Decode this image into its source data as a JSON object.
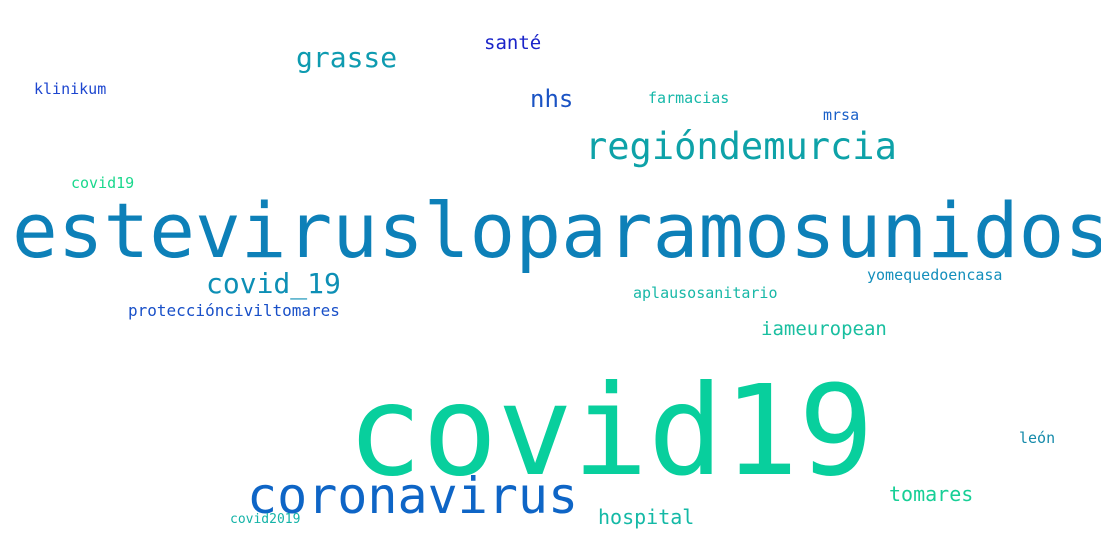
{
  "words": [
    {
      "text": "grasse",
      "color": "#0e9bb0"
    },
    {
      "text": "santé",
      "color": "#1a24c9"
    },
    {
      "text": "klinikum",
      "color": "#1d46cf"
    },
    {
      "text": "nhs",
      "color": "#1a53c4"
    },
    {
      "text": "farmacias",
      "color": "#16b8a9"
    },
    {
      "text": "mrsa",
      "color": "#1a60c8"
    },
    {
      "text": "regióndemurcia",
      "color": "#0ea2a8"
    },
    {
      "text": "covid19",
      "color": "#1ad88d"
    },
    {
      "text": "estevirusloparamosunidos",
      "color": "#0d80b8"
    },
    {
      "text": "covid_19",
      "color": "#0d8fb5"
    },
    {
      "text": "yomequedoencasa",
      "color": "#148fbc"
    },
    {
      "text": "aplausosanitario",
      "color": "#18b8a7"
    },
    {
      "text": "protecciónciviltomares",
      "color": "#1950c8"
    },
    {
      "text": "iameuropean",
      "color": "#19bfa0"
    },
    {
      "text": "covid19",
      "color": "#08cf9d"
    },
    {
      "text": "león",
      "color": "#148aaa"
    },
    {
      "text": "coronavirus",
      "color": "#0e65c6"
    },
    {
      "text": "tomares",
      "color": "#17cf96"
    },
    {
      "text": "hospital",
      "color": "#14b9a6"
    },
    {
      "text": "covid2019",
      "color": "#14b3a7"
    }
  ]
}
